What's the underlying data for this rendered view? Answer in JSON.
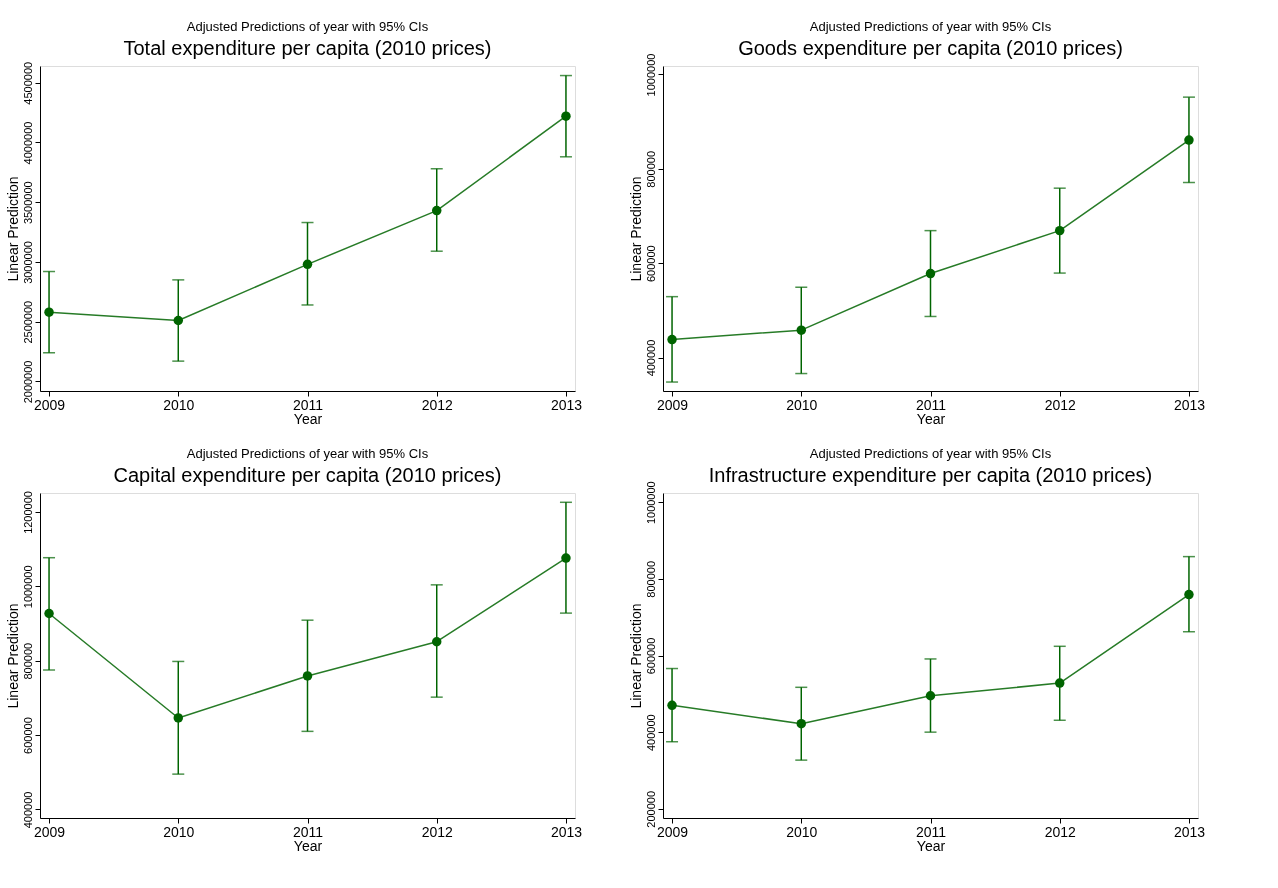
{
  "chart_data": [
    {
      "type": "line",
      "subtitle": "Adjusted Predictions of year with 95% CIs",
      "title": "Total expenditure per capita (2010 prices)",
      "xlabel": "Year",
      "ylabel": "Linear Prediction",
      "x": [
        2009,
        2010,
        2011,
        2012,
        2013
      ],
      "xlim": [
        2008.93,
        2013.07
      ],
      "xticks": [
        2009,
        2010,
        2011,
        2012,
        2013
      ],
      "ylim": [
        1920000,
        4640000
      ],
      "yticks": [
        2000000,
        2500000,
        3000000,
        3500000,
        4000000,
        4500000
      ],
      "marker": "circle",
      "series": [
        {
          "color": "#006400",
          "values": [
            2580000,
            2510000,
            2980000,
            3430000,
            4220000
          ],
          "errors": [
            [
              2240000,
              2920000
            ],
            [
              2170000,
              2850000
            ],
            [
              2640000,
              3330000
            ],
            [
              3090000,
              3780000
            ],
            [
              3880000,
              4560000
            ]
          ]
        }
      ]
    },
    {
      "type": "line",
      "subtitle": "Adjusted Predictions of year with 95% CIs",
      "title": "Goods expenditure per capita (2010 prices)",
      "xlabel": "Year",
      "ylabel": "Linear Prediction",
      "x": [
        2009,
        2010,
        2011,
        2012,
        2013
      ],
      "xlim": [
        2008.93,
        2013.07
      ],
      "xticks": [
        2009,
        2010,
        2011,
        2012,
        2013
      ],
      "ylim": [
        329000,
        1018000
      ],
      "yticks": [
        400000,
        600000,
        800000,
        1000000
      ],
      "marker": "circle",
      "series": [
        {
          "color": "#006400",
          "values": [
            438000,
            458000,
            578000,
            669000,
            861000
          ],
          "errors": [
            [
              348000,
              529000
            ],
            [
              366000,
              549000
            ],
            [
              487000,
              669000
            ],
            [
              579000,
              759000
            ],
            [
              771000,
              952000
            ]
          ]
        }
      ]
    },
    {
      "type": "line",
      "subtitle": "Adjusted Predictions of year with 95% CIs",
      "title": "Capital expenditure per capita (2010 prices)",
      "xlabel": "Year",
      "ylabel": "Linear Prediction",
      "x": [
        2009,
        2010,
        2011,
        2012,
        2013
      ],
      "xlim": [
        2008.93,
        2013.07
      ],
      "xticks": [
        2009,
        2010,
        2011,
        2012,
        2013
      ],
      "ylim": [
        377000,
        1251000
      ],
      "yticks": [
        400000,
        600000,
        800000,
        1000000,
        1200000
      ],
      "marker": "circle",
      "series": [
        {
          "color": "#006400",
          "values": [
            927000,
            646000,
            759000,
            851000,
            1076000
          ],
          "errors": [
            [
              775000,
              1077000
            ],
            [
              495000,
              798000
            ],
            [
              610000,
              909000
            ],
            [
              702000,
              1004000
            ],
            [
              928000,
              1226000
            ]
          ]
        }
      ]
    },
    {
      "type": "line",
      "subtitle": "Adjusted Predictions of year with 95% CIs",
      "title": "Infrastructure expenditure per capita (2010 prices)",
      "xlabel": "Year",
      "ylabel": "Linear Prediction",
      "x": [
        2009,
        2010,
        2011,
        2012,
        2013
      ],
      "xlim": [
        2008.93,
        2013.07
      ],
      "xticks": [
        2009,
        2010,
        2011,
        2012,
        2013
      ],
      "ylim": [
        176000,
        1024000
      ],
      "yticks": [
        200000,
        400000,
        600000,
        800000,
        1000000
      ],
      "marker": "circle",
      "series": [
        {
          "color": "#006400",
          "values": [
            470000,
            422000,
            495000,
            528000,
            759000
          ],
          "errors": [
            [
              375000,
              566000
            ],
            [
              327000,
              517000
            ],
            [
              400000,
              591000
            ],
            [
              431000,
              624000
            ],
            [
              662000,
              858000
            ]
          ]
        }
      ]
    }
  ]
}
